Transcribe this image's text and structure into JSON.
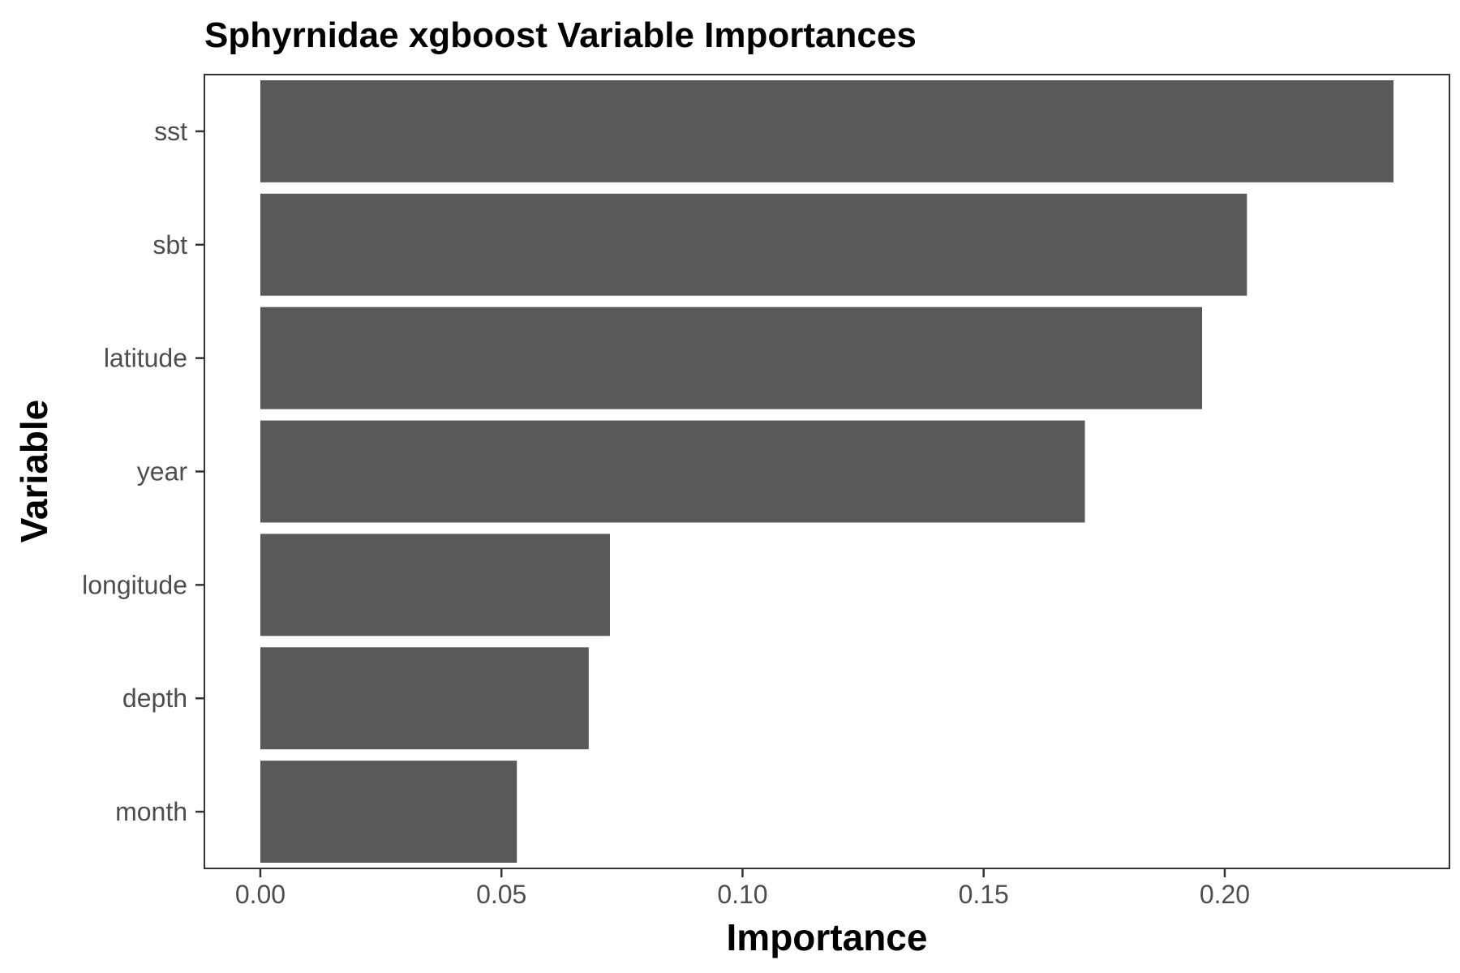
{
  "chart_data": {
    "type": "bar",
    "orientation": "horizontal",
    "title": "Sphyrnidae xgboost Variable Importances",
    "xlabel": "Importance",
    "ylabel": "Variable",
    "categories": [
      "sst",
      "sbt",
      "latitude",
      "year",
      "longitude",
      "depth",
      "month"
    ],
    "values": [
      0.235,
      0.2046,
      0.1953,
      0.171,
      0.0725,
      0.0681,
      0.0532
    ],
    "xlim": [
      -0.0116,
      0.2466
    ],
    "xticks": [
      0.0,
      0.05,
      0.1,
      0.15,
      0.2
    ],
    "xtick_labels": [
      "0.00",
      "0.05",
      "0.10",
      "0.15",
      "0.20"
    ],
    "grid": false,
    "legend": "none",
    "bar_color": "#595959",
    "panel_border_color": "#333333"
  }
}
